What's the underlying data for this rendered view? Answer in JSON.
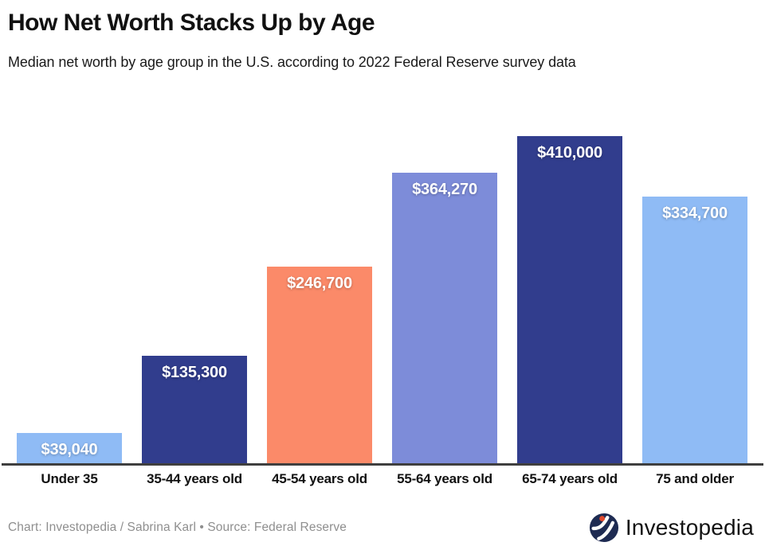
{
  "header": {
    "title": "How Net Worth Stacks Up by Age",
    "subtitle": "Median net worth by age group in the U.S. according to 2022 Federal Reserve survey data"
  },
  "chart_data": {
    "type": "bar",
    "title": "How Net Worth Stacks Up by Age",
    "categories": [
      "Under 35",
      "35-44 years old",
      "45-54 years old",
      "55-64 years old",
      "65-74 years old",
      "75 and older"
    ],
    "values": [
      39040,
      135300,
      246700,
      364270,
      410000,
      334700
    ],
    "value_labels": [
      "$39,040",
      "$135,300",
      "$246,700",
      "$364,270",
      "$410,000",
      "$334,700"
    ],
    "bar_colors": [
      "#8FBBF5",
      "#313D8D",
      "#FB8A69",
      "#7D8CD9",
      "#313D8D",
      "#8FBBF5"
    ],
    "value_label_color": "#FFFFFF",
    "xlabel": "",
    "ylabel": "",
    "ylim": [
      0,
      410000
    ],
    "grid": false,
    "legend": "none",
    "baseline_color": "#3F3F3F"
  },
  "footer": {
    "credit": "Chart: Investopedia / Sabrina Karl • Source: Federal Reserve",
    "brand_name": "Investopedia",
    "brand_icon": "investopedia-logo-icon",
    "brand_icon_colors": {
      "circle": "#1E2B52",
      "mark": "#FFFFFF",
      "dot": "#E0492D"
    }
  }
}
